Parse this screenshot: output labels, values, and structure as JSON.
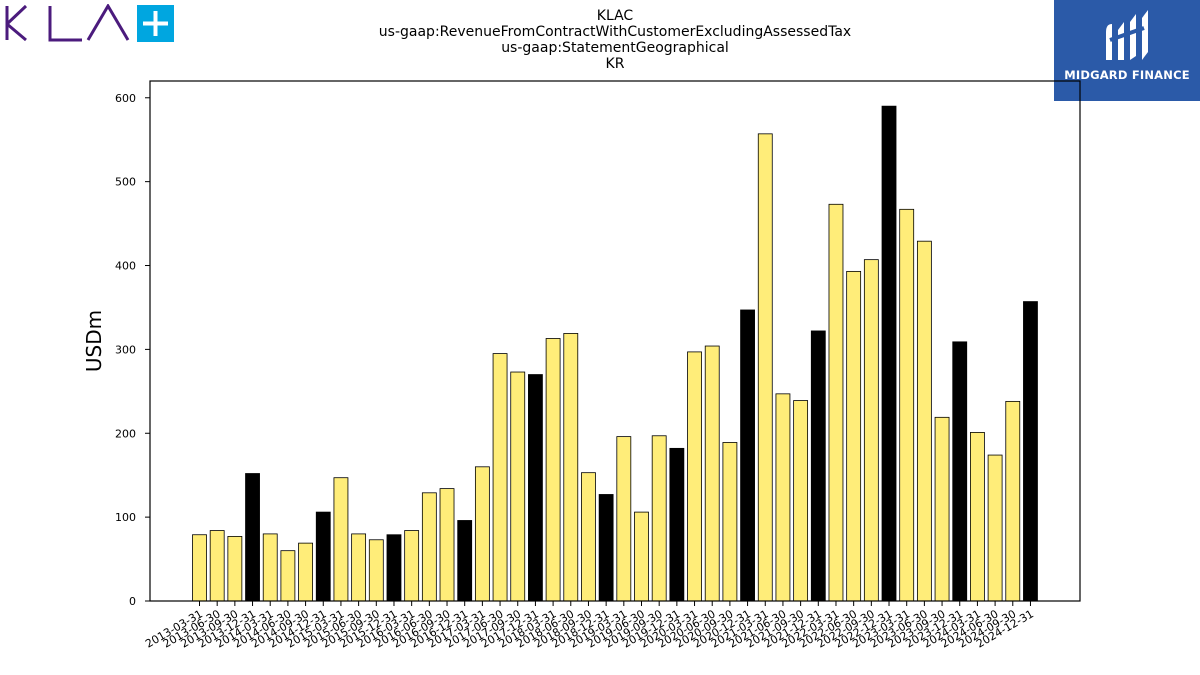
{
  "header": {
    "title_lines": [
      "KLAC",
      "us-gaap:RevenueFromContractWithCustomerExcludingAssessedTax",
      "us-gaap:StatementGeographical",
      "KR"
    ]
  },
  "logos": {
    "left_brand": "KLA",
    "right_brand": "MIDGARD FINANCE"
  },
  "colors": {
    "bar_regular": "#ffed79",
    "bar_year_end": "#000000",
    "bar_edge": "#000000",
    "kla_purple": "#4b1b7d",
    "kla_plus_blue": "#00a6e0",
    "midgard_blue": "#2b5aa8"
  },
  "chart_data": {
    "type": "bar",
    "title": "",
    "xlabel": "",
    "ylabel": "USDm",
    "ylim": [
      0,
      620
    ],
    "yticks": [
      0,
      100,
      200,
      300,
      400,
      500,
      600
    ],
    "grid": false,
    "legend": "none",
    "categories": [
      "2013-03-31",
      "2013-06-30",
      "2013-09-30",
      "2013-12-31",
      "2014-03-31",
      "2014-06-30",
      "2014-09-30",
      "2014-12-31",
      "2015-03-31",
      "2015-06-30",
      "2015-09-30",
      "2015-12-31",
      "2016-03-31",
      "2016-06-30",
      "2016-09-30",
      "2016-12-31",
      "2017-03-31",
      "2017-06-30",
      "2017-09-30",
      "2017-12-31",
      "2018-03-31",
      "2018-06-30",
      "2018-09-30",
      "2018-12-31",
      "2019-03-31",
      "2019-06-30",
      "2019-09-30",
      "2019-12-31",
      "2020-03-31",
      "2020-06-30",
      "2020-09-30",
      "2020-12-31",
      "2021-03-31",
      "2021-06-30",
      "2021-09-30",
      "2021-12-31",
      "2022-03-31",
      "2022-06-30",
      "2022-09-30",
      "2022-12-31",
      "2023-03-31",
      "2023-06-30",
      "2023-09-30",
      "2023-12-31",
      "2024-03-31",
      "2024-06-30",
      "2024-09-30",
      "2024-12-31"
    ],
    "values": [
      79,
      84,
      77,
      152,
      80,
      60,
      69,
      106,
      147,
      80,
      73,
      79,
      84,
      129,
      134,
      96,
      160,
      295,
      273,
      270,
      313,
      319,
      153,
      127,
      196,
      106,
      197,
      182,
      297,
      304,
      189,
      347,
      557,
      247,
      239,
      322,
      473,
      393,
      407,
      590,
      467,
      429,
      219,
      309,
      201,
      174,
      238,
      357
    ],
    "highlight": [
      false,
      false,
      false,
      true,
      false,
      false,
      false,
      true,
      false,
      false,
      false,
      true,
      false,
      false,
      false,
      true,
      false,
      false,
      false,
      true,
      false,
      false,
      false,
      true,
      false,
      false,
      false,
      true,
      false,
      false,
      false,
      true,
      false,
      false,
      false,
      true,
      false,
      false,
      false,
      true,
      false,
      false,
      false,
      true,
      false,
      false,
      false,
      true
    ]
  }
}
